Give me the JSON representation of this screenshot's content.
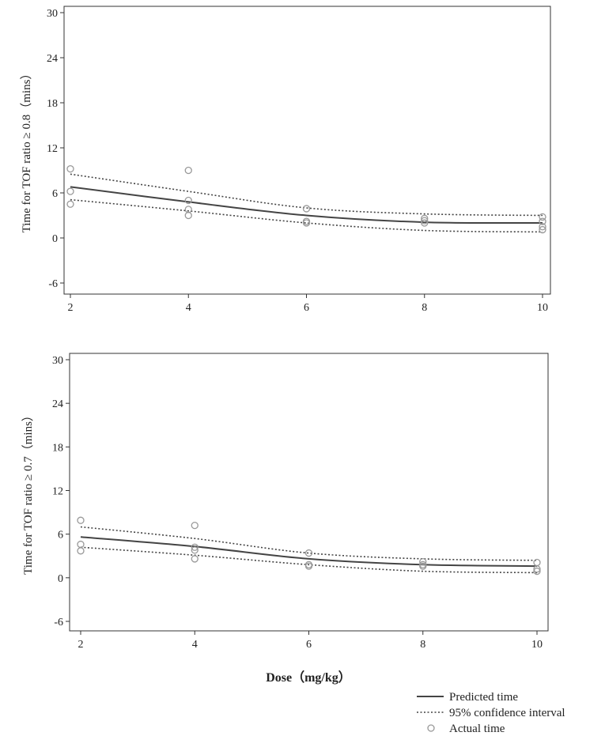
{
  "xlabel": "Dose（mg/kg）",
  "legend": {
    "predicted": "Predicted time",
    "ci": "95% confidence interval",
    "actual": "Actual time"
  },
  "chart_data": [
    {
      "type": "line",
      "ylabel": "Time for TOF ratio ≥ 0.8（mins）",
      "xlim": [
        2,
        10
      ],
      "ylim": [
        -6,
        30
      ],
      "xticks": [
        2,
        4,
        6,
        8,
        10
      ],
      "yticks": [
        -6,
        0,
        6,
        12,
        18,
        24,
        30
      ],
      "grid": false,
      "x": [
        2,
        4,
        6,
        8,
        10
      ],
      "series": [
        {
          "name": "Predicted time",
          "values": [
            6.8,
            4.8,
            3.0,
            2.1,
            2.0
          ]
        },
        {
          "name": "95% confidence interval",
          "values": [
            8.5,
            6.2,
            4.0,
            3.2,
            3.0
          ]
        },
        {
          "name": "95% confidence interval",
          "values": [
            5.1,
            3.6,
            2.0,
            1.0,
            0.8
          ]
        }
      ],
      "points": [
        {
          "x": 2,
          "y": 9.2
        },
        {
          "x": 2,
          "y": 6.2
        },
        {
          "x": 2,
          "y": 4.5
        },
        {
          "x": 4,
          "y": 9.0
        },
        {
          "x": 4,
          "y": 5.0
        },
        {
          "x": 4,
          "y": 3.8
        },
        {
          "x": 4,
          "y": 3.0
        },
        {
          "x": 6,
          "y": 3.9
        },
        {
          "x": 6,
          "y": 2.2
        },
        {
          "x": 6,
          "y": 2.0
        },
        {
          "x": 8,
          "y": 2.6
        },
        {
          "x": 8,
          "y": 2.3
        },
        {
          "x": 8,
          "y": 2.0
        },
        {
          "x": 10,
          "y": 2.8
        },
        {
          "x": 10,
          "y": 2.2
        },
        {
          "x": 10,
          "y": 1.5
        },
        {
          "x": 10,
          "y": 1.1
        }
      ]
    },
    {
      "type": "line",
      "ylabel": "Time for TOF ratio ≥ 0.7（mins）",
      "xlim": [
        2,
        10
      ],
      "ylim": [
        -6,
        30
      ],
      "xticks": [
        2,
        4,
        6,
        8,
        10
      ],
      "yticks": [
        -6,
        0,
        6,
        12,
        18,
        24,
        30
      ],
      "grid": false,
      "x": [
        2,
        4,
        6,
        8,
        10
      ],
      "series": [
        {
          "name": "Predicted time",
          "values": [
            5.6,
            4.3,
            2.6,
            1.8,
            1.6
          ]
        },
        {
          "name": "95% confidence interval",
          "values": [
            7.0,
            5.4,
            3.4,
            2.6,
            2.4
          ]
        },
        {
          "name": "95% confidence interval",
          "values": [
            4.2,
            3.1,
            1.8,
            0.9,
            0.7
          ]
        }
      ],
      "points": [
        {
          "x": 2,
          "y": 7.9
        },
        {
          "x": 2,
          "y": 4.6
        },
        {
          "x": 2,
          "y": 3.7
        },
        {
          "x": 4,
          "y": 7.2
        },
        {
          "x": 4,
          "y": 4.2
        },
        {
          "x": 4,
          "y": 3.8
        },
        {
          "x": 4,
          "y": 2.6
        },
        {
          "x": 6,
          "y": 3.4
        },
        {
          "x": 6,
          "y": 1.8
        },
        {
          "x": 6,
          "y": 1.6
        },
        {
          "x": 8,
          "y": 2.2
        },
        {
          "x": 8,
          "y": 1.8
        },
        {
          "x": 8,
          "y": 1.6
        },
        {
          "x": 10,
          "y": 2.1
        },
        {
          "x": 10,
          "y": 1.2
        },
        {
          "x": 10,
          "y": 0.9
        }
      ]
    }
  ]
}
